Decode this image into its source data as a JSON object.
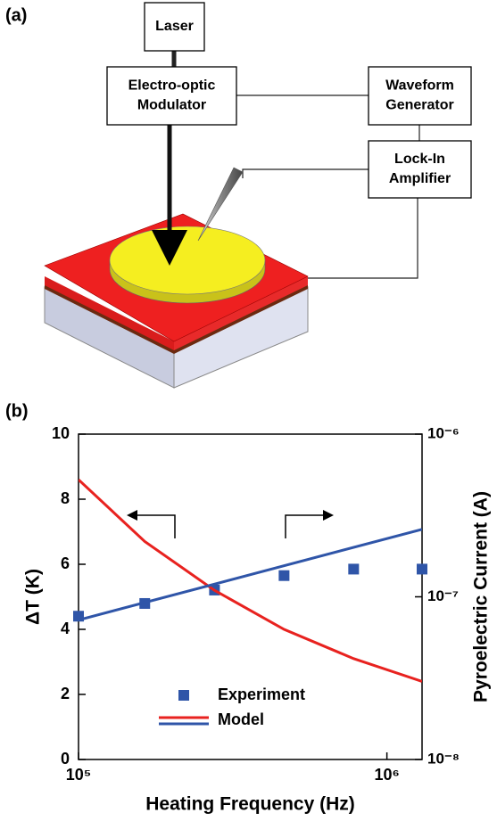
{
  "panels": [
    {
      "label": "(a)"
    },
    {
      "label": "(b)"
    }
  ],
  "diagram": {
    "nodes": [
      {
        "lines": [
          "Laser"
        ]
      },
      {
        "lines": [
          "Electro-optic",
          "Modulator"
        ]
      },
      {
        "lines": [
          "Waveform",
          "Generator"
        ]
      },
      {
        "lines": [
          "Lock-In",
          "Amplifier"
        ]
      }
    ]
  },
  "chart_data": {
    "type": "line",
    "xlabel": "Heating Frequency (Hz)",
    "ylabel": "ΔT (K)",
    "y2label": "Pyroelectric Current (A)",
    "xscale": "log",
    "y2scale": "log",
    "xlim": [
      100000,
      1300000
    ],
    "xticks": [
      {
        "value": 100000,
        "label": "10⁵"
      },
      {
        "value": 1000000,
        "label": "10⁶"
      }
    ],
    "ylim": [
      0,
      10
    ],
    "yticks": [
      0,
      2,
      4,
      6,
      8,
      10
    ],
    "y2lim": [
      1e-08,
      1e-06
    ],
    "y2ticks": [
      {
        "value": 1e-08,
        "label": "10⁻⁸"
      },
      {
        "value": 1e-07,
        "label": "10⁻⁷"
      },
      {
        "value": 1e-06,
        "label": "10⁻⁶"
      }
    ],
    "legend": "bottom-center",
    "series": [
      {
        "name": "Experiment",
        "kind": "scatter",
        "axis": "y2",
        "color": "#2f55a8",
        "x": [
          100000,
          164000,
          276000,
          464000,
          780000,
          1300000
        ],
        "values": [
          7.6e-08,
          9.1e-08,
          1.1e-07,
          1.35e-07,
          1.48e-07,
          1.48e-07
        ]
      },
      {
        "name": "Model",
        "kind": "line",
        "color": "#e8221f",
        "x": [
          100000,
          164000,
          276000,
          464000,
          780000,
          1300000
        ],
        "values": [
          8.6,
          6.7,
          5.2,
          4.0,
          3.1,
          2.4
        ]
      },
      {
        "kind": "line",
        "axis": "y2",
        "color": "#2f55a8",
        "x": [
          100000,
          1300000
        ],
        "values": [
          7.2e-08,
          2.6e-07
        ]
      }
    ]
  }
}
